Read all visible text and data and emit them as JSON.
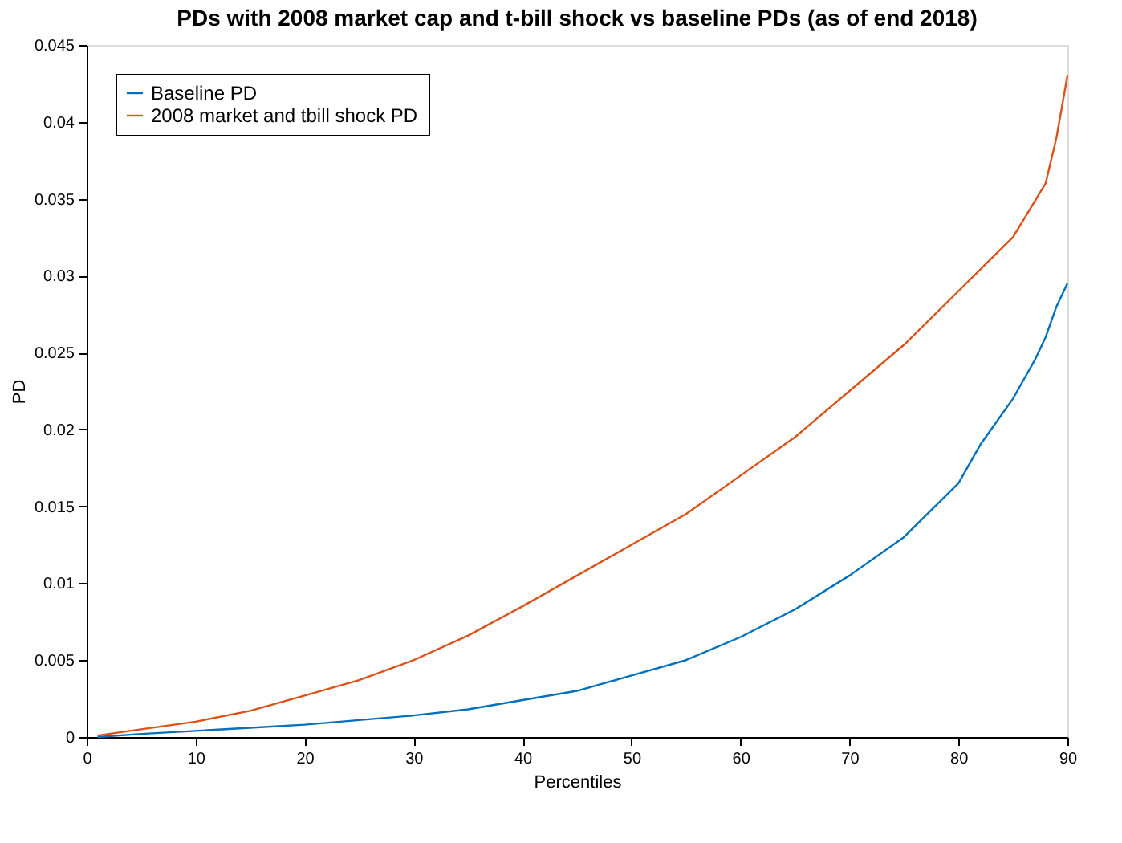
{
  "chart_data": {
    "type": "line",
    "title": "PDs with 2008 market cap and t-bill shock vs baseline PDs (as of end 2018)",
    "xlabel": "Percentiles",
    "ylabel": "PD",
    "xlim": [
      0,
      90
    ],
    "xticks": [
      0,
      10,
      20,
      30,
      40,
      50,
      60,
      70,
      80,
      90
    ],
    "ylim": [
      0,
      0.045
    ],
    "yticks": [
      0,
      0.005,
      0.01,
      0.015,
      0.02,
      0.025,
      0.03,
      0.035,
      0.04,
      0.045
    ],
    "grid": false,
    "legend": "top left",
    "marker": "none",
    "line_style": "solid",
    "series": [
      {
        "name": "Baseline PD",
        "color": "#0072bd",
        "x": [
          1,
          5,
          10,
          15,
          20,
          25,
          30,
          35,
          40,
          45,
          50,
          55,
          60,
          65,
          70,
          75,
          80,
          82,
          85,
          87,
          88,
          89,
          90
        ],
        "values": [
          0,
          0.0002,
          0.0004,
          0.0006,
          0.0008,
          0.0011,
          0.0014,
          0.0018,
          0.0024,
          0.003,
          0.004,
          0.005,
          0.0065,
          0.0083,
          0.0105,
          0.013,
          0.0165,
          0.019,
          0.022,
          0.0245,
          0.026,
          0.028,
          0.0295
        ]
      },
      {
        "name": "2008 market and tbill shock PD",
        "color": "#d95319",
        "x": [
          1,
          5,
          10,
          15,
          20,
          25,
          30,
          35,
          40,
          45,
          50,
          55,
          60,
          65,
          70,
          75,
          80,
          85,
          88,
          89,
          90
        ],
        "values": [
          0.0001,
          0.0005,
          0.001,
          0.0017,
          0.0027,
          0.0037,
          0.005,
          0.0066,
          0.0085,
          0.0105,
          0.0125,
          0.0145,
          0.017,
          0.0195,
          0.0225,
          0.0255,
          0.029,
          0.0325,
          0.036,
          0.039,
          0.043
        ]
      }
    ]
  }
}
